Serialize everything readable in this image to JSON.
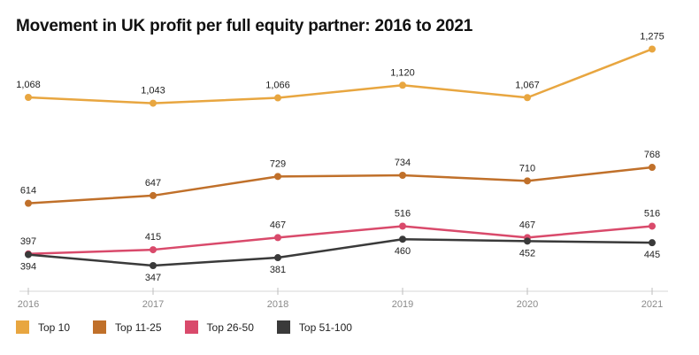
{
  "title": "Movement in UK profit per full equity partner: 2016 to 2021",
  "chart_data": {
    "type": "line",
    "title": "Movement in UK profit per full equity partner: 2016 to 2021",
    "x": [
      "2016",
      "2017",
      "2018",
      "2019",
      "2020",
      "2021"
    ],
    "series": [
      {
        "name": "Top 10",
        "color": "#E8A640",
        "values": [
          1068,
          1043,
          1066,
          1120,
          1067,
          1275
        ],
        "label_pos": [
          "above",
          "above",
          "above",
          "above",
          "above",
          "above"
        ]
      },
      {
        "name": "Top 11-25",
        "color": "#C0702A",
        "values": [
          614,
          647,
          729,
          734,
          710,
          768
        ],
        "label_pos": [
          "above",
          "above",
          "above",
          "above",
          "above",
          "above"
        ]
      },
      {
        "name": "Top 26-50",
        "color": "#D94A6B",
        "values": [
          397,
          415,
          467,
          516,
          467,
          516
        ],
        "label_pos": [
          "above",
          "above",
          "above",
          "above",
          "above",
          "above"
        ]
      },
      {
        "name": "Top 51-100",
        "color": "#3A3A3A",
        "values": [
          394,
          347,
          381,
          460,
          452,
          445
        ],
        "label_pos": [
          "below",
          "below",
          "below",
          "below",
          "below",
          "below"
        ]
      }
    ],
    "grid": false,
    "legend": "bottom-left"
  }
}
